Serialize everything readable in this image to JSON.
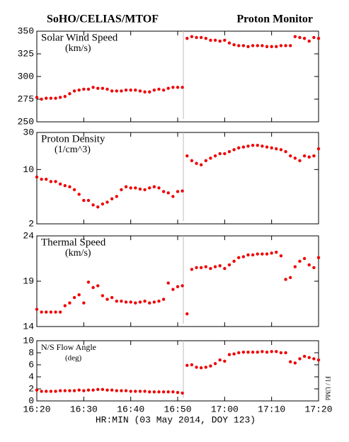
{
  "header": {
    "left": "SoHO/CELIAS/MTOF",
    "right": "Proton Monitor"
  },
  "credit": "FI / UMd",
  "x_axis": {
    "label": "HR:MIN (03 May 2014, DOY 123)",
    "xlim": [
      980,
      1040
    ],
    "xticks": [
      {
        "value": 980,
        "label": "16:20"
      },
      {
        "value": 990,
        "label": "16:30"
      },
      {
        "value": 1000,
        "label": "16:40"
      },
      {
        "value": 1010,
        "label": "16:50"
      },
      {
        "value": 1020,
        "label": "17:00"
      },
      {
        "value": 1030,
        "label": "17:10"
      },
      {
        "value": 1040,
        "label": "17:20"
      }
    ]
  },
  "chart_data": [
    {
      "type": "scatter",
      "title": "Solar Wind Speed",
      "subtitle": "(km/s)",
      "color": "#ee0000",
      "x": [
        980,
        981,
        982,
        983,
        984,
        985,
        986,
        987,
        988,
        989,
        990,
        991,
        992,
        993,
        994,
        995,
        996,
        997,
        998,
        999,
        1000,
        1001,
        1002,
        1003,
        1004,
        1005,
        1006,
        1007,
        1008,
        1009,
        1010,
        1011,
        1012,
        1013,
        1014,
        1015,
        1016,
        1017,
        1018,
        1019,
        1020,
        1021,
        1022,
        1023,
        1024,
        1025,
        1026,
        1027,
        1028,
        1029,
        1030,
        1031,
        1032,
        1033,
        1034,
        1035,
        1036,
        1037,
        1038,
        1039,
        1040
      ],
      "values": [
        277,
        275,
        276,
        276,
        276,
        277,
        278,
        281,
        284,
        285,
        286,
        286,
        288,
        287,
        287,
        286,
        284,
        284,
        284,
        285,
        285,
        285,
        284,
        283,
        283,
        285,
        286,
        285,
        287,
        288,
        288,
        288,
        342,
        344,
        343,
        343,
        342,
        340,
        340,
        339,
        340,
        337,
        335,
        334,
        334,
        333,
        334,
        334,
        334,
        333,
        333,
        333,
        334,
        334,
        334,
        344,
        343,
        342,
        339,
        343,
        342
      ],
      "ylim": [
        250,
        350
      ],
      "yticks": [
        250,
        275,
        300,
        325,
        350
      ]
    },
    {
      "type": "scatter",
      "title": "Proton Density",
      "subtitle": "(1/cm^3)",
      "color": "#ee0000",
      "log": true,
      "x": [
        980,
        981,
        982,
        983,
        984,
        985,
        986,
        987,
        988,
        989,
        990,
        991,
        992,
        993,
        994,
        995,
        996,
        997,
        998,
        999,
        1000,
        1001,
        1002,
        1003,
        1004,
        1005,
        1006,
        1007,
        1008,
        1009,
        1010,
        1011,
        1012,
        1013,
        1014,
        1015,
        1016,
        1017,
        1018,
        1019,
        1020,
        1021,
        1022,
        1023,
        1024,
        1025,
        1026,
        1027,
        1028,
        1029,
        1030,
        1031,
        1032,
        1033,
        1034,
        1035,
        1036,
        1037,
        1038,
        1039,
        1040
      ],
      "values": [
        8,
        7.5,
        7.5,
        7,
        7,
        6.5,
        6.2,
        6,
        5.5,
        4.8,
        4,
        4,
        3.5,
        3.3,
        3.6,
        3.8,
        4.2,
        4.5,
        5.5,
        6,
        5.8,
        5.8,
        5.6,
        5.5,
        5.8,
        6,
        5.8,
        5.2,
        5,
        4.5,
        5.2,
        5.3,
        15,
        13,
        12,
        11.5,
        13,
        14,
        15,
        16,
        16,
        17,
        18,
        19,
        19.5,
        20,
        20.5,
        20.5,
        20,
        19.5,
        19,
        18.5,
        18,
        17,
        15,
        14,
        13,
        15,
        14.5,
        15,
        18.5
      ],
      "ylim": [
        2,
        30
      ],
      "yticks": [
        2,
        10,
        30
      ]
    },
    {
      "type": "scatter",
      "title": "Thermal Speed",
      "subtitle": "(km/s)",
      "color": "#ee0000",
      "x": [
        980,
        981,
        982,
        983,
        984,
        985,
        986,
        987,
        988,
        989,
        990,
        991,
        992,
        993,
        994,
        995,
        996,
        997,
        998,
        999,
        1000,
        1001,
        1002,
        1003,
        1004,
        1005,
        1006,
        1007,
        1008,
        1009,
        1010,
        1011,
        1012,
        1013,
        1014,
        1015,
        1016,
        1017,
        1018,
        1019,
        1020,
        1021,
        1022,
        1023,
        1024,
        1025,
        1026,
        1027,
        1028,
        1029,
        1030,
        1031,
        1032,
        1033,
        1034,
        1035,
        1036,
        1037,
        1038,
        1039,
        1040
      ],
      "values": [
        15.9,
        15.6,
        15.6,
        15.6,
        15.6,
        15.6,
        16.3,
        16.6,
        17.2,
        17.5,
        16.6,
        18.9,
        18.3,
        18.5,
        17.4,
        17.0,
        17.2,
        16.8,
        16.8,
        16.7,
        16.7,
        16.6,
        16.7,
        16.8,
        16.6,
        16.7,
        16.8,
        17.0,
        18.8,
        18.1,
        18.4,
        18.5,
        15.4,
        20.3,
        20.5,
        20.5,
        20.6,
        20.4,
        20.6,
        20.7,
        20.4,
        20.8,
        21.2,
        21.6,
        21.7,
        21.9,
        21.9,
        22.0,
        22.0,
        22.0,
        22.1,
        22.2,
        21.8,
        19.2,
        19.4,
        20.6,
        21.2,
        21.5,
        20.8,
        20.5,
        21.6
      ],
      "ylim": [
        14,
        24
      ],
      "yticks": [
        14,
        19,
        24
      ]
    },
    {
      "type": "scatter",
      "title": "N/S Flow Angle",
      "subtitle": "(deg)",
      "color": "#ee0000",
      "x": [
        980,
        981,
        982,
        983,
        984,
        985,
        986,
        987,
        988,
        989,
        990,
        991,
        992,
        993,
        994,
        995,
        996,
        997,
        998,
        999,
        1000,
        1001,
        1002,
        1003,
        1004,
        1005,
        1006,
        1007,
        1008,
        1009,
        1010,
        1011,
        1012,
        1013,
        1014,
        1015,
        1016,
        1017,
        1018,
        1019,
        1020,
        1021,
        1022,
        1023,
        1024,
        1025,
        1026,
        1027,
        1028,
        1029,
        1030,
        1031,
        1032,
        1033,
        1034,
        1035,
        1036,
        1037,
        1038,
        1039,
        1040
      ],
      "values": [
        1.8,
        1.6,
        1.6,
        1.6,
        1.6,
        1.7,
        1.7,
        1.7,
        1.7,
        1.8,
        1.7,
        1.8,
        1.8,
        1.9,
        1.9,
        1.8,
        1.8,
        1.7,
        1.7,
        1.7,
        1.6,
        1.6,
        1.6,
        1.6,
        1.5,
        1.5,
        1.5,
        1.5,
        1.5,
        1.5,
        1.4,
        1.3,
        5.9,
        6.0,
        5.6,
        5.5,
        5.6,
        5.8,
        6.2,
        6.8,
        6.6,
        7.7,
        7.8,
        8.0,
        8.1,
        8.1,
        8.1,
        8.1,
        8.2,
        8.1,
        8.2,
        8.2,
        8.0,
        8.0,
        6.5,
        6.3,
        7.0,
        7.4,
        7.2,
        7.0,
        6.8
      ],
      "ylim": [
        0,
        10
      ],
      "yticks": [
        0,
        2,
        4,
        6,
        8,
        10
      ]
    }
  ]
}
